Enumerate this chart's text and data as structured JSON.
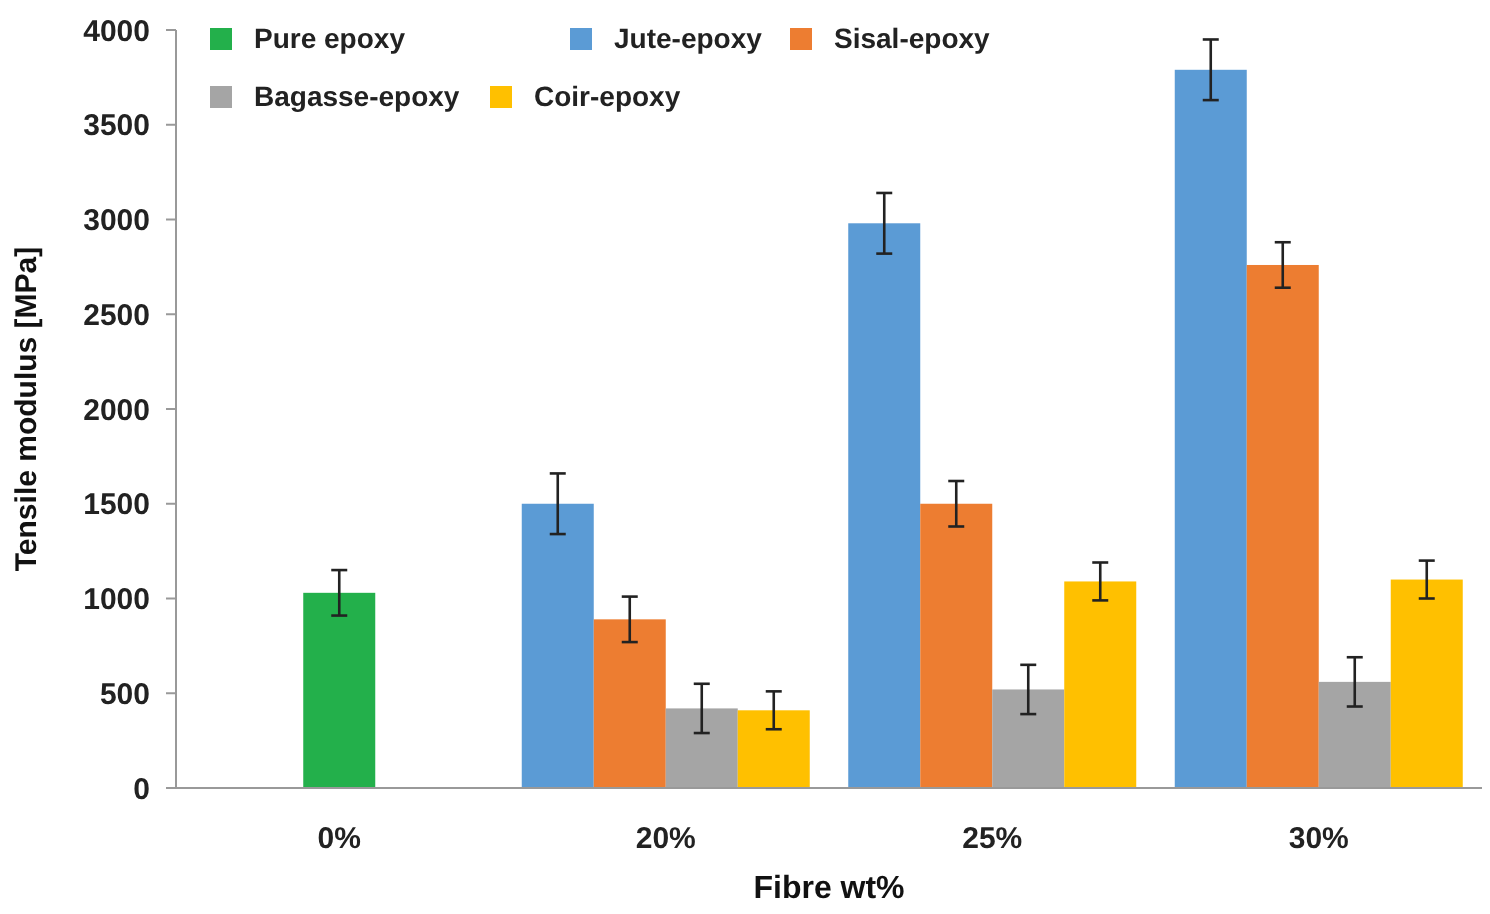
{
  "chart_data": {
    "type": "bar",
    "xlabel": "Fibre wt%",
    "ylabel": "Tensile modulus [MPa]",
    "categories": [
      "0%",
      "20%",
      "25%",
      "30%"
    ],
    "series": [
      {
        "name": "Pure epoxy",
        "color": "#23b04b",
        "values": [
          1030,
          null,
          null,
          null
        ],
        "errors": [
          120,
          null,
          null,
          null
        ]
      },
      {
        "name": "Jute-epoxy",
        "color": "#5b9bd5",
        "values": [
          null,
          1500,
          2980,
          3790
        ],
        "errors": [
          null,
          160,
          160,
          160
        ]
      },
      {
        "name": "Sisal-epoxy",
        "color": "#ed7d31",
        "values": [
          null,
          890,
          1500,
          2760
        ],
        "errors": [
          null,
          120,
          120,
          120
        ]
      },
      {
        "name": "Bagasse-epoxy",
        "color": "#a5a5a5",
        "values": [
          null,
          420,
          520,
          560
        ],
        "errors": [
          null,
          130,
          130,
          130
        ]
      },
      {
        "name": "Coir-epoxy",
        "color": "#ffc000",
        "values": [
          null,
          410,
          1090,
          1100
        ],
        "errors": [
          null,
          100,
          100,
          100
        ]
      }
    ],
    "ylim": [
      0,
      4000
    ],
    "yticks": [
      0,
      500,
      1000,
      1500,
      2000,
      2500,
      3000,
      3500,
      4000
    ],
    "grid": false,
    "legend": "top left"
  }
}
